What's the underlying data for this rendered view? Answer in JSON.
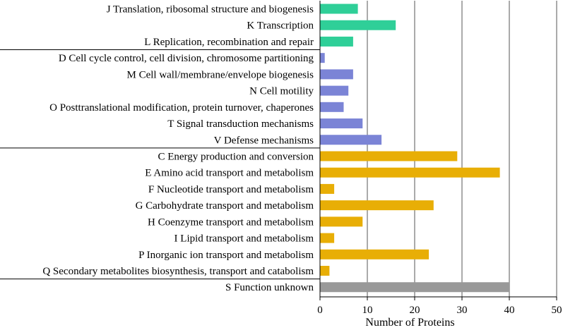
{
  "chart_data": {
    "type": "bar",
    "orientation": "horizontal",
    "xlabel": "Number of Proteins",
    "ylabel": "",
    "title": "",
    "xlim": [
      0,
      50
    ],
    "xticks": [
      0,
      10,
      20,
      30,
      40,
      50
    ],
    "grid": "vertical",
    "legend": "none",
    "colors": {
      "information": "#2fcf98",
      "cellular": "#7b84d6",
      "metabolism": "#e8ae06",
      "unknown": "#999999"
    },
    "groups": [
      {
        "color_key": "information",
        "categories": [
          {
            "label": "J Translation, ribosomal structure and biogenesis",
            "value": 8
          },
          {
            "label": "K Transcription",
            "value": 16
          },
          {
            "label": "L Replication, recombination and repair",
            "value": 7
          }
        ]
      },
      {
        "color_key": "cellular",
        "categories": [
          {
            "label": "D Cell cycle control, cell division, chromosome partitioning",
            "value": 1
          },
          {
            "label": "M Cell wall/membrane/envelope biogenesis",
            "value": 7
          },
          {
            "label": "N Cell motility",
            "value": 6
          },
          {
            "label": "O Posttranslational modification, protein turnover, chaperones",
            "value": 5
          },
          {
            "label": "T Signal transduction mechanisms",
            "value": 9
          },
          {
            "label": "V Defense mechanisms",
            "value": 13
          }
        ]
      },
      {
        "color_key": "metabolism",
        "categories": [
          {
            "label": "C Energy production and conversion",
            "value": 29
          },
          {
            "label": "E Amino acid transport and metabolism",
            "value": 38
          },
          {
            "label": "F Nucleotide transport and metabolism",
            "value": 3
          },
          {
            "label": "G Carbohydrate transport and metabolism",
            "value": 24
          },
          {
            "label": "H Coenzyme transport and metabolism",
            "value": 9
          },
          {
            "label": "I Lipid transport and metabolism",
            "value": 3
          },
          {
            "label": "P Inorganic ion transport and metabolism",
            "value": 23
          },
          {
            "label": "Q Secondary metabolites biosynthesis, transport and catabolism",
            "value": 2
          }
        ]
      },
      {
        "color_key": "unknown",
        "categories": [
          {
            "label": "S Function unknown",
            "value": 40
          }
        ]
      }
    ]
  }
}
